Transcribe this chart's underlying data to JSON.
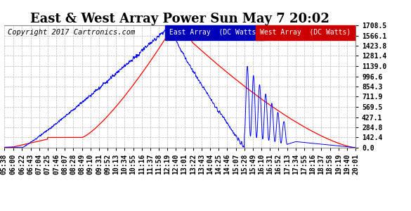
{
  "title": "East & West Array Power Sun May 7 20:02",
  "copyright": "Copyright 2017 Cartronics.com",
  "legend_east": "East Array  (DC Watts)",
  "legend_west": "West Array  (DC Watts)",
  "east_color": "#0000ff",
  "west_color": "#ff0000",
  "legend_east_bg": "#0000bb",
  "legend_west_bg": "#cc0000",
  "bg_color": "#ffffff",
  "grid_color": "#bbbbbb",
  "y_ticks": [
    0.0,
    142.4,
    284.8,
    427.1,
    569.5,
    711.9,
    854.3,
    996.6,
    1139.0,
    1281.4,
    1423.8,
    1566.1,
    1708.5
  ],
  "ymax": 1708.5,
  "x_tick_labels": [
    "05:38",
    "06:00",
    "06:22",
    "06:43",
    "07:04",
    "07:25",
    "07:46",
    "08:07",
    "08:28",
    "08:49",
    "09:10",
    "09:31",
    "09:52",
    "10:13",
    "10:34",
    "10:55",
    "11:16",
    "11:37",
    "11:58",
    "12:19",
    "12:40",
    "13:01",
    "13:22",
    "13:43",
    "14:04",
    "14:25",
    "14:46",
    "15:07",
    "15:28",
    "15:49",
    "16:10",
    "16:31",
    "16:52",
    "17:13",
    "17:34",
    "17:55",
    "18:16",
    "18:37",
    "18:58",
    "19:19",
    "19:40",
    "20:01"
  ],
  "title_fontsize": 13,
  "tick_fontsize": 7,
  "copyright_fontsize": 7.5
}
